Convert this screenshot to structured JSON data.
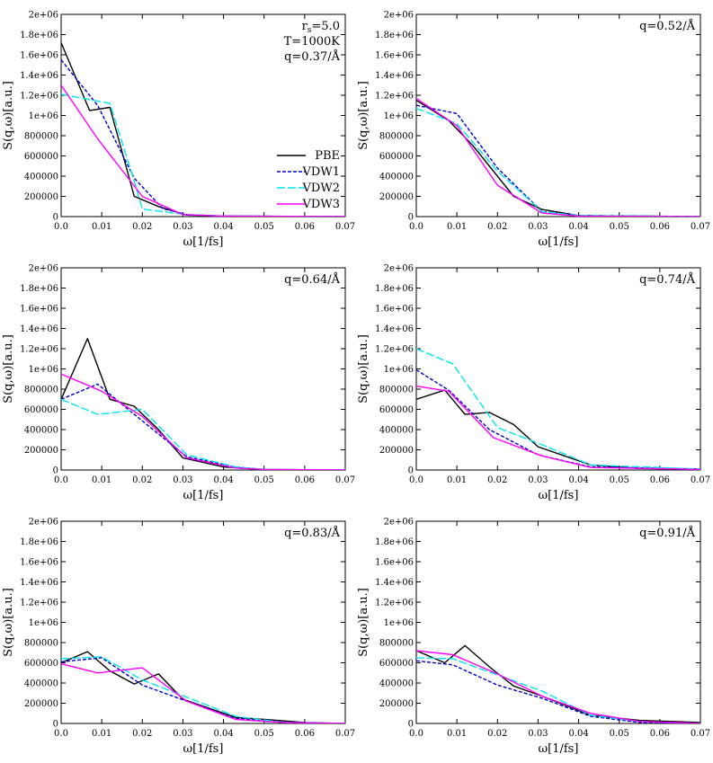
{
  "figure": {
    "legend": [
      {
        "name": "PBE",
        "color": "#000000",
        "dash": "solid"
      },
      {
        "name": "VDW1",
        "color": "#0000cc",
        "dash": "dashed"
      },
      {
        "name": "VDW2",
        "color": "#00e5ee",
        "dash": "longdash"
      },
      {
        "name": "VDW3",
        "color": "#ff00ff",
        "dash": "solid"
      }
    ]
  },
  "chart_data": [
    {
      "type": "line",
      "annotation": [
        "r_s=5.0",
        "T=1000K",
        "q=0.37/Å"
      ],
      "xlabel": "ω[1/fs]",
      "ylabel": "S(q,ω)[a.u.]",
      "xlim": [
        0,
        0.07
      ],
      "ylim": [
        0,
        2000000
      ],
      "xticks": [
        "0.0",
        "0.01",
        "0.02",
        "0.03",
        "0.04",
        "0.05",
        "0.06",
        "0.07"
      ],
      "yticks": [
        "0",
        "200000",
        "400000",
        "600000",
        "800000",
        "1e+06",
        "1.2e+06",
        "1.4e+06",
        "1.6e+06",
        "1.8e+06",
        "2e+06"
      ],
      "legend_position": "right-middle",
      "series": [
        {
          "name": "PBE",
          "x": [
            0,
            0.007,
            0.012,
            0.018,
            0.024,
            0.031,
            0.04,
            0.07
          ],
          "y": [
            1720000,
            1050000,
            1080000,
            200000,
            100000,
            15000,
            5000,
            0
          ]
        },
        {
          "name": "VDW1",
          "x": [
            0,
            0.009,
            0.018,
            0.025,
            0.031,
            0.04,
            0.07
          ],
          "y": [
            1550000,
            1100000,
            380000,
            80000,
            20000,
            5000,
            0
          ]
        },
        {
          "name": "VDW2",
          "x": [
            0,
            0.012,
            0.018,
            0.02,
            0.031,
            0.04,
            0.07
          ],
          "y": [
            1210000,
            1120000,
            350000,
            75000,
            20000,
            5000,
            0
          ]
        },
        {
          "name": "VDW3",
          "x": [
            0,
            0.009,
            0.02,
            0.03,
            0.04,
            0.07
          ],
          "y": [
            1300000,
            770000,
            200000,
            20000,
            5000,
            0
          ]
        }
      ]
    },
    {
      "type": "line",
      "annotation": [
        "q=0.52/Å"
      ],
      "xlabel": "ω[1/fs]",
      "ylabel": "S(q,ω)[a.u.]",
      "xlim": [
        0,
        0.07
      ],
      "ylim": [
        0,
        2000000
      ],
      "xticks": [
        "0.0",
        "0.01",
        "0.02",
        "0.03",
        "0.04",
        "0.05",
        "0.06",
        "0.07"
      ],
      "yticks": [
        "0",
        "200000",
        "400000",
        "600000",
        "800000",
        "1e+06",
        "1.2e+06",
        "1.4e+06",
        "1.6e+06",
        "1.8e+06",
        "2e+06"
      ],
      "series": [
        {
          "name": "PBE",
          "x": [
            0,
            0.008,
            0.014,
            0.024,
            0.031,
            0.04,
            0.07
          ],
          "y": [
            1150000,
            950000,
            700000,
            200000,
            70000,
            10000,
            0
          ]
        },
        {
          "name": "VDW1",
          "x": [
            0,
            0.01,
            0.02,
            0.031,
            0.04,
            0.07
          ],
          "y": [
            1100000,
            1020000,
            480000,
            50000,
            10000,
            0
          ]
        },
        {
          "name": "VDW2",
          "x": [
            0,
            0.01,
            0.02,
            0.031,
            0.04,
            0.07
          ],
          "y": [
            1070000,
            920000,
            450000,
            50000,
            10000,
            0
          ]
        },
        {
          "name": "VDW3",
          "x": [
            0,
            0.01,
            0.02,
            0.031,
            0.04,
            0.07
          ],
          "y": [
            1170000,
            900000,
            310000,
            35000,
            5000,
            0
          ]
        }
      ]
    },
    {
      "type": "line",
      "annotation": [
        "q=0.64/Å"
      ],
      "xlabel": "ω[1/fs]",
      "ylabel": "S(q,ω)[a.u.]",
      "xlim": [
        0,
        0.07
      ],
      "ylim": [
        0,
        2000000
      ],
      "xticks": [
        "0.0",
        "0.01",
        "0.02",
        "0.03",
        "0.04",
        "0.05",
        "0.06",
        "0.07"
      ],
      "yticks": [
        "0",
        "200000",
        "400000",
        "600000",
        "800000",
        "1e+06",
        "1.2e+06",
        "1.4e+06",
        "1.6e+06",
        "1.8e+06",
        "2e+06"
      ],
      "series": [
        {
          "name": "PBE",
          "x": [
            0,
            0.0065,
            0.012,
            0.018,
            0.024,
            0.03,
            0.04,
            0.05,
            0.07
          ],
          "y": [
            700000,
            1300000,
            700000,
            630000,
            400000,
            120000,
            30000,
            5000,
            0
          ]
        },
        {
          "name": "VDW1",
          "x": [
            0,
            0.009,
            0.018,
            0.031,
            0.043,
            0.05,
            0.07
          ],
          "y": [
            700000,
            850000,
            550000,
            130000,
            30000,
            5000,
            0
          ]
        },
        {
          "name": "VDW2",
          "x": [
            0,
            0.009,
            0.02,
            0.031,
            0.043,
            0.05,
            0.07
          ],
          "y": [
            700000,
            550000,
            600000,
            150000,
            30000,
            5000,
            0
          ]
        },
        {
          "name": "VDW3",
          "x": [
            0,
            0.01,
            0.02,
            0.031,
            0.043,
            0.05,
            0.07
          ],
          "y": [
            950000,
            780000,
            530000,
            120000,
            20000,
            5000,
            0
          ]
        }
      ]
    },
    {
      "type": "line",
      "annotation": [
        "q=0.74/Å"
      ],
      "xlabel": "ω[1/fs]",
      "ylabel": "S(q,ω)[a.u.]",
      "xlim": [
        0,
        0.07
      ],
      "ylim": [
        0,
        2000000
      ],
      "xticks": [
        "0.0",
        "0.01",
        "0.02",
        "0.03",
        "0.04",
        "0.05",
        "0.06",
        "0.07"
      ],
      "yticks": [
        "0",
        "200000",
        "400000",
        "600000",
        "800000",
        "1e+06",
        "1.2e+06",
        "1.4e+06",
        "1.6e+06",
        "1.8e+06",
        "2e+06"
      ],
      "series": [
        {
          "name": "PBE",
          "x": [
            0,
            0.007,
            0.012,
            0.018,
            0.024,
            0.03,
            0.043,
            0.055,
            0.07
          ],
          "y": [
            700000,
            790000,
            550000,
            570000,
            450000,
            230000,
            50000,
            15000,
            10000
          ]
        },
        {
          "name": "VDW1",
          "x": [
            0,
            0.008,
            0.018,
            0.03,
            0.043,
            0.07
          ],
          "y": [
            990000,
            790000,
            400000,
            150000,
            30000,
            10000
          ]
        },
        {
          "name": "VDW2",
          "x": [
            0,
            0.009,
            0.02,
            0.031,
            0.043,
            0.07
          ],
          "y": [
            1200000,
            1050000,
            420000,
            250000,
            50000,
            10000
          ]
        },
        {
          "name": "VDW3",
          "x": [
            0,
            0.008,
            0.019,
            0.031,
            0.043,
            0.07
          ],
          "y": [
            830000,
            780000,
            320000,
            140000,
            25000,
            5000
          ]
        }
      ]
    },
    {
      "type": "line",
      "annotation": [
        "q=0.83/Å"
      ],
      "xlabel": "ω[1/fs]",
      "ylabel": "S(q,ω)[a.u.]",
      "xlim": [
        0,
        0.07
      ],
      "ylim": [
        0,
        2000000
      ],
      "xticks": [
        "0.0",
        "0.01",
        "0.02",
        "0.03",
        "0.04",
        "0.05",
        "0.06",
        "0.07"
      ],
      "yticks": [
        "0",
        "200000",
        "400000",
        "600000",
        "800000",
        "1e+06",
        "1.2e+06",
        "1.4e+06",
        "1.6e+06",
        "1.8e+06",
        "2e+06"
      ],
      "series": [
        {
          "name": "PBE",
          "x": [
            0,
            0.0065,
            0.012,
            0.018,
            0.024,
            0.03,
            0.043,
            0.05,
            0.06,
            0.07
          ],
          "y": [
            600000,
            710000,
            520000,
            390000,
            490000,
            240000,
            60000,
            40000,
            10000,
            0
          ]
        },
        {
          "name": "VDW1",
          "x": [
            0,
            0.01,
            0.02,
            0.031,
            0.043,
            0.055,
            0.07
          ],
          "y": [
            610000,
            650000,
            380000,
            220000,
            50000,
            10000,
            0
          ]
        },
        {
          "name": "VDW2",
          "x": [
            0,
            0.01,
            0.02,
            0.031,
            0.043,
            0.055,
            0.07
          ],
          "y": [
            640000,
            660000,
            430000,
            260000,
            70000,
            10000,
            0
          ]
        },
        {
          "name": "VDW3",
          "x": [
            0,
            0.009,
            0.02,
            0.031,
            0.043,
            0.055,
            0.07
          ],
          "y": [
            590000,
            500000,
            550000,
            220000,
            40000,
            10000,
            0
          ]
        }
      ]
    },
    {
      "type": "line",
      "annotation": [
        "q=0.91/Å"
      ],
      "xlabel": "ω[1/fs]",
      "ylabel": "S(q,ω)[a.u.]",
      "xlim": [
        0,
        0.07
      ],
      "ylim": [
        0,
        2000000
      ],
      "xticks": [
        "0.0",
        "0.01",
        "0.02",
        "0.03",
        "0.04",
        "0.05",
        "0.06",
        "0.07"
      ],
      "yticks": [
        "0",
        "200000",
        "400000",
        "600000",
        "800000",
        "1e+06",
        "1.2e+06",
        "1.4e+06",
        "1.6e+06",
        "1.8e+06",
        "2e+06"
      ],
      "series": [
        {
          "name": "PBE",
          "x": [
            0,
            0.007,
            0.012,
            0.018,
            0.024,
            0.031,
            0.043,
            0.055,
            0.07
          ],
          "y": [
            720000,
            600000,
            770000,
            560000,
            370000,
            270000,
            80000,
            30000,
            10000
          ]
        },
        {
          "name": "VDW1",
          "x": [
            0,
            0.009,
            0.02,
            0.031,
            0.043,
            0.055,
            0.07
          ],
          "y": [
            620000,
            580000,
            380000,
            250000,
            70000,
            10000,
            0
          ]
        },
        {
          "name": "VDW2",
          "x": [
            0,
            0.009,
            0.02,
            0.031,
            0.043,
            0.055,
            0.07
          ],
          "y": [
            650000,
            640000,
            480000,
            320000,
            80000,
            20000,
            0
          ]
        },
        {
          "name": "VDW3",
          "x": [
            0,
            0.009,
            0.02,
            0.031,
            0.043,
            0.055,
            0.07
          ],
          "y": [
            720000,
            680000,
            490000,
            270000,
            100000,
            20000,
            0
          ]
        }
      ]
    }
  ]
}
